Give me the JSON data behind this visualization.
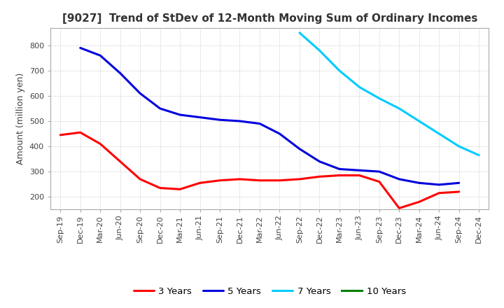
{
  "title": "[9027]  Trend of StDev of 12-Month Moving Sum of Ordinary Incomes",
  "ylabel": "Amount (million yen)",
  "background_color": "#ffffff",
  "grid_color": "#bbbbbb",
  "x_labels": [
    "Sep-19",
    "Dec-19",
    "Mar-20",
    "Jun-20",
    "Sep-20",
    "Dec-20",
    "Mar-21",
    "Jun-21",
    "Sep-21",
    "Dec-21",
    "Mar-22",
    "Jun-22",
    "Sep-22",
    "Dec-22",
    "Mar-23",
    "Jun-23",
    "Sep-23",
    "Dec-23",
    "Mar-24",
    "Jun-24",
    "Sep-24",
    "Dec-24"
  ],
  "series": [
    {
      "name": "3 Years",
      "color": "#ff0000",
      "data": [
        445,
        455,
        410,
        340,
        270,
        235,
        230,
        255,
        265,
        270,
        265,
        265,
        270,
        280,
        285,
        285,
        260,
        155,
        180,
        215,
        220,
        null
      ]
    },
    {
      "name": "5 Years",
      "color": "#0000dd",
      "data": [
        null,
        790,
        760,
        690,
        610,
        550,
        525,
        515,
        505,
        500,
        490,
        450,
        390,
        340,
        310,
        305,
        300,
        270,
        255,
        248,
        255,
        null
      ]
    },
    {
      "name": "7 Years",
      "color": "#00ccff",
      "data": [
        null,
        null,
        null,
        null,
        null,
        null,
        null,
        null,
        null,
        null,
        null,
        null,
        850,
        780,
        700,
        635,
        590,
        550,
        500,
        450,
        400,
        365
      ]
    },
    {
      "name": "10 Years",
      "color": "#008000",
      "data": [
        null,
        null,
        null,
        null,
        null,
        null,
        null,
        null,
        null,
        null,
        null,
        null,
        null,
        null,
        null,
        null,
        null,
        null,
        null,
        null,
        null,
        null
      ]
    }
  ],
  "ylim": [
    150,
    870
  ],
  "yticks": [
    200,
    300,
    400,
    500,
    600,
    700,
    800
  ],
  "title_fontsize": 11,
  "ylabel_fontsize": 9,
  "tick_fontsize": 8,
  "line_width": 2.2,
  "legend_fontsize": 9.5
}
